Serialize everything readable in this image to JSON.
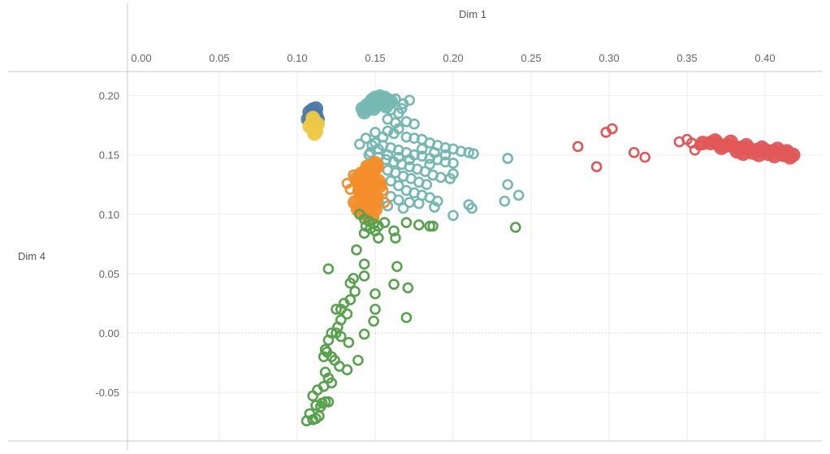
{
  "chart_data": {
    "type": "scatter",
    "xlabel": "Dim 1",
    "ylabel": "Dim 4",
    "xlim": [
      -0.008,
      0.445
    ],
    "ylim": [
      -0.09,
      0.22
    ],
    "x_ticks": [
      "0.00",
      "0.05",
      "0.10",
      "0.15",
      "0.20",
      "0.25",
      "0.30",
      "0.35",
      "0.40"
    ],
    "x_tick_values": [
      0.0,
      0.05,
      0.1,
      0.15,
      0.2,
      0.25,
      0.3,
      0.35,
      0.4
    ],
    "y_ticks": [
      "0.20",
      "0.15",
      "0.10",
      "0.05",
      "0.00",
      "-0.05"
    ],
    "y_tick_values": [
      0.2,
      0.15,
      0.1,
      0.05,
      0.0,
      -0.05
    ],
    "x_axis_position": "top",
    "grid": true,
    "zero_line": true,
    "series": [
      {
        "color": "#4e79a7",
        "marker": "filled",
        "points": [
          [
            0.108,
            0.186
          ],
          [
            0.11,
            0.188
          ],
          [
            0.112,
            0.184
          ],
          [
            0.109,
            0.182
          ],
          [
            0.113,
            0.18
          ],
          [
            0.111,
            0.178
          ],
          [
            0.107,
            0.18
          ],
          [
            0.112,
            0.189
          ],
          [
            0.11,
            0.176
          ]
        ]
      },
      {
        "color": "#edc948",
        "marker": "filled",
        "points": [
          [
            0.11,
            0.178
          ],
          [
            0.111,
            0.172
          ],
          [
            0.109,
            0.175
          ],
          [
            0.112,
            0.17
          ],
          [
            0.108,
            0.174
          ],
          [
            0.111,
            0.168
          ],
          [
            0.11,
            0.181
          ],
          [
            0.113,
            0.176
          ]
        ]
      },
      {
        "color": "#76b7b2",
        "marker": "filled",
        "points": [
          [
            0.142,
            0.189
          ],
          [
            0.145,
            0.192
          ],
          [
            0.148,
            0.196
          ],
          [
            0.15,
            0.198
          ],
          [
            0.153,
            0.199
          ],
          [
            0.156,
            0.198
          ],
          [
            0.158,
            0.196
          ],
          [
            0.16,
            0.195
          ],
          [
            0.147,
            0.191
          ],
          [
            0.151,
            0.193
          ],
          [
            0.155,
            0.194
          ],
          [
            0.143,
            0.186
          ],
          [
            0.149,
            0.189
          ],
          [
            0.157,
            0.191
          ]
        ]
      },
      {
        "color": "#76b7b2",
        "marker": "hollow",
        "points": [
          [
            0.163,
            0.197
          ],
          [
            0.168,
            0.193
          ],
          [
            0.172,
            0.196
          ],
          [
            0.167,
            0.189
          ],
          [
            0.16,
            0.188
          ],
          [
            0.165,
            0.185
          ],
          [
            0.158,
            0.18
          ],
          [
            0.163,
            0.177
          ],
          [
            0.17,
            0.178
          ],
          [
            0.175,
            0.176
          ],
          [
            0.165,
            0.172
          ],
          [
            0.158,
            0.17
          ],
          [
            0.15,
            0.169
          ],
          [
            0.155,
            0.165
          ],
          [
            0.162,
            0.168
          ],
          [
            0.17,
            0.165
          ],
          [
            0.175,
            0.164
          ],
          [
            0.18,
            0.163
          ],
          [
            0.185,
            0.16
          ],
          [
            0.19,
            0.158
          ],
          [
            0.195,
            0.156
          ],
          [
            0.2,
            0.155
          ],
          [
            0.205,
            0.153
          ],
          [
            0.21,
            0.152
          ],
          [
            0.213,
            0.151
          ],
          [
            0.15,
            0.16
          ],
          [
            0.155,
            0.158
          ],
          [
            0.16,
            0.156
          ],
          [
            0.165,
            0.154
          ],
          [
            0.17,
            0.152
          ],
          [
            0.175,
            0.15
          ],
          [
            0.18,
            0.149
          ],
          [
            0.185,
            0.147
          ],
          [
            0.19,
            0.146
          ],
          [
            0.195,
            0.144
          ],
          [
            0.2,
            0.143
          ],
          [
            0.147,
            0.152
          ],
          [
            0.152,
            0.148
          ],
          [
            0.157,
            0.146
          ],
          [
            0.162,
            0.144
          ],
          [
            0.167,
            0.142
          ],
          [
            0.172,
            0.14
          ],
          [
            0.177,
            0.138
          ],
          [
            0.182,
            0.136
          ],
          [
            0.187,
            0.133
          ],
          [
            0.192,
            0.131
          ],
          [
            0.198,
            0.13
          ],
          [
            0.2,
            0.134
          ],
          [
            0.152,
            0.14
          ],
          [
            0.158,
            0.137
          ],
          [
            0.163,
            0.135
          ],
          [
            0.168,
            0.132
          ],
          [
            0.173,
            0.13
          ],
          [
            0.178,
            0.127
          ],
          [
            0.183,
            0.125
          ],
          [
            0.16,
            0.128
          ],
          [
            0.165,
            0.124
          ],
          [
            0.17,
            0.12
          ],
          [
            0.175,
            0.118
          ],
          [
            0.18,
            0.116
          ],
          [
            0.185,
            0.114
          ],
          [
            0.19,
            0.111
          ],
          [
            0.16,
            0.115
          ],
          [
            0.165,
            0.112
          ],
          [
            0.172,
            0.11
          ],
          [
            0.178,
            0.109
          ],
          [
            0.188,
            0.106
          ],
          [
            0.152,
            0.11
          ],
          [
            0.158,
            0.107
          ],
          [
            0.168,
            0.105
          ],
          [
            0.2,
            0.099
          ],
          [
            0.21,
            0.108
          ],
          [
            0.212,
            0.105
          ],
          [
            0.235,
            0.147
          ],
          [
            0.235,
            0.125
          ],
          [
            0.233,
            0.111
          ],
          [
            0.242,
            0.116
          ],
          [
            0.148,
            0.158
          ],
          [
            0.144,
            0.164
          ],
          [
            0.14,
            0.159
          ],
          [
            0.146,
            0.15
          ],
          [
            0.152,
            0.155
          ],
          [
            0.158,
            0.15
          ],
          [
            0.18,
            0.155
          ],
          [
            0.188,
            0.152
          ],
          [
            0.195,
            0.15
          ],
          [
            0.165,
            0.148
          ],
          [
            0.172,
            0.146
          ],
          [
            0.185,
            0.142
          ]
        ]
      },
      {
        "color": "#f28e2b",
        "marker": "filled",
        "points": [
          [
            0.138,
            0.13
          ],
          [
            0.14,
            0.127
          ],
          [
            0.142,
            0.125
          ],
          [
            0.144,
            0.122
          ],
          [
            0.146,
            0.12
          ],
          [
            0.148,
            0.118
          ],
          [
            0.141,
            0.116
          ],
          [
            0.143,
            0.113
          ],
          [
            0.145,
            0.11
          ],
          [
            0.147,
            0.108
          ],
          [
            0.139,
            0.104
          ],
          [
            0.142,
            0.101
          ],
          [
            0.145,
            0.099
          ],
          [
            0.148,
            0.097
          ],
          [
            0.146,
            0.133
          ],
          [
            0.149,
            0.137
          ],
          [
            0.151,
            0.14
          ],
          [
            0.15,
            0.143
          ],
          [
            0.144,
            0.136
          ],
          [
            0.14,
            0.12
          ],
          [
            0.152,
            0.128
          ],
          [
            0.151,
            0.114
          ],
          [
            0.143,
            0.106
          ],
          [
            0.15,
            0.104
          ],
          [
            0.137,
            0.11
          ],
          [
            0.153,
            0.124
          ],
          [
            0.147,
            0.128
          ],
          [
            0.141,
            0.134
          ],
          [
            0.145,
            0.14
          ],
          [
            0.149,
            0.112
          ]
        ]
      },
      {
        "color": "#f28e2b",
        "marker": "hollow",
        "points": [
          [
            0.132,
            0.126
          ],
          [
            0.134,
            0.121
          ],
          [
            0.136,
            0.133
          ],
          [
            0.155,
            0.12
          ],
          [
            0.156,
            0.11
          ]
        ]
      },
      {
        "color": "#59a14f",
        "marker": "hollow",
        "points": [
          [
            0.14,
            0.1
          ],
          [
            0.143,
            0.096
          ],
          [
            0.146,
            0.094
          ],
          [
            0.149,
            0.092
          ],
          [
            0.152,
            0.09
          ],
          [
            0.144,
            0.09
          ],
          [
            0.147,
            0.088
          ],
          [
            0.15,
            0.086
          ],
          [
            0.143,
            0.084
          ],
          [
            0.152,
            0.08
          ],
          [
            0.162,
            0.086
          ],
          [
            0.163,
            0.08
          ],
          [
            0.17,
            0.093
          ],
          [
            0.178,
            0.091
          ],
          [
            0.185,
            0.09
          ],
          [
            0.187,
            0.09
          ],
          [
            0.24,
            0.089
          ],
          [
            0.156,
            0.093
          ],
          [
            0.138,
            0.07
          ],
          [
            0.12,
            0.054
          ],
          [
            0.143,
            0.058
          ],
          [
            0.143,
            0.048
          ],
          [
            0.136,
            0.046
          ],
          [
            0.134,
            0.042
          ],
          [
            0.137,
            0.035
          ],
          [
            0.15,
            0.033
          ],
          [
            0.164,
            0.056
          ],
          [
            0.171,
            0.038
          ],
          [
            0.162,
            0.041
          ],
          [
            0.134,
            0.028
          ],
          [
            0.13,
            0.025
          ],
          [
            0.128,
            0.02
          ],
          [
            0.125,
            0.02
          ],
          [
            0.132,
            0.016
          ],
          [
            0.15,
            0.02
          ],
          [
            0.17,
            0.013
          ],
          [
            0.149,
            0.01
          ],
          [
            0.128,
            0.011
          ],
          [
            0.126,
            0.005
          ],
          [
            0.125,
            0.0
          ],
          [
            0.122,
            0.0
          ],
          [
            0.128,
            -0.003
          ],
          [
            0.133,
            -0.008
          ],
          [
            0.143,
            -0.001
          ],
          [
            0.12,
            -0.006
          ],
          [
            0.118,
            -0.014
          ],
          [
            0.117,
            -0.02
          ],
          [
            0.119,
            -0.016
          ],
          [
            0.122,
            -0.02
          ],
          [
            0.124,
            -0.023
          ],
          [
            0.139,
            -0.023
          ],
          [
            0.127,
            -0.028
          ],
          [
            0.118,
            -0.033
          ],
          [
            0.12,
            -0.038
          ],
          [
            0.122,
            -0.042
          ],
          [
            0.117,
            -0.045
          ],
          [
            0.132,
            -0.031
          ],
          [
            0.113,
            -0.048
          ],
          [
            0.11,
            -0.053
          ],
          [
            0.118,
            -0.058
          ],
          [
            0.112,
            -0.061
          ],
          [
            0.115,
            -0.062
          ],
          [
            0.108,
            -0.068
          ],
          [
            0.112,
            -0.072
          ],
          [
            0.106,
            -0.074
          ],
          [
            0.11,
            -0.073
          ],
          [
            0.114,
            -0.07
          ],
          [
            0.116,
            -0.059
          ],
          [
            0.12,
            -0.058
          ]
        ]
      },
      {
        "color": "#e15759",
        "marker": "filled",
        "points": [
          [
            0.36,
            0.16
          ],
          [
            0.365,
            0.16
          ],
          [
            0.37,
            0.159
          ],
          [
            0.375,
            0.158
          ],
          [
            0.38,
            0.157
          ],
          [
            0.385,
            0.156
          ],
          [
            0.39,
            0.155
          ],
          [
            0.395,
            0.154
          ],
          [
            0.4,
            0.154
          ],
          [
            0.405,
            0.153
          ],
          [
            0.41,
            0.152
          ],
          [
            0.415,
            0.151
          ],
          [
            0.418,
            0.15
          ],
          [
            0.372,
            0.156
          ],
          [
            0.382,
            0.153
          ],
          [
            0.392,
            0.152
          ],
          [
            0.402,
            0.151
          ],
          [
            0.412,
            0.15
          ],
          [
            0.416,
            0.148
          ],
          [
            0.378,
            0.161
          ],
          [
            0.388,
            0.158
          ],
          [
            0.398,
            0.156
          ],
          [
            0.408,
            0.155
          ],
          [
            0.414,
            0.153
          ],
          [
            0.368,
            0.162
          ],
          [
            0.396,
            0.15
          ],
          [
            0.406,
            0.149
          ],
          [
            0.386,
            0.151
          ]
        ]
      },
      {
        "color": "#e15759",
        "marker": "hollow",
        "points": [
          [
            0.28,
            0.157
          ],
          [
            0.292,
            0.14
          ],
          [
            0.298,
            0.169
          ],
          [
            0.302,
            0.172
          ],
          [
            0.316,
            0.152
          ],
          [
            0.323,
            0.148
          ],
          [
            0.345,
            0.161
          ],
          [
            0.35,
            0.163
          ],
          [
            0.353,
            0.16
          ],
          [
            0.355,
            0.154
          ],
          [
            0.358,
            0.158
          ]
        ]
      }
    ]
  }
}
